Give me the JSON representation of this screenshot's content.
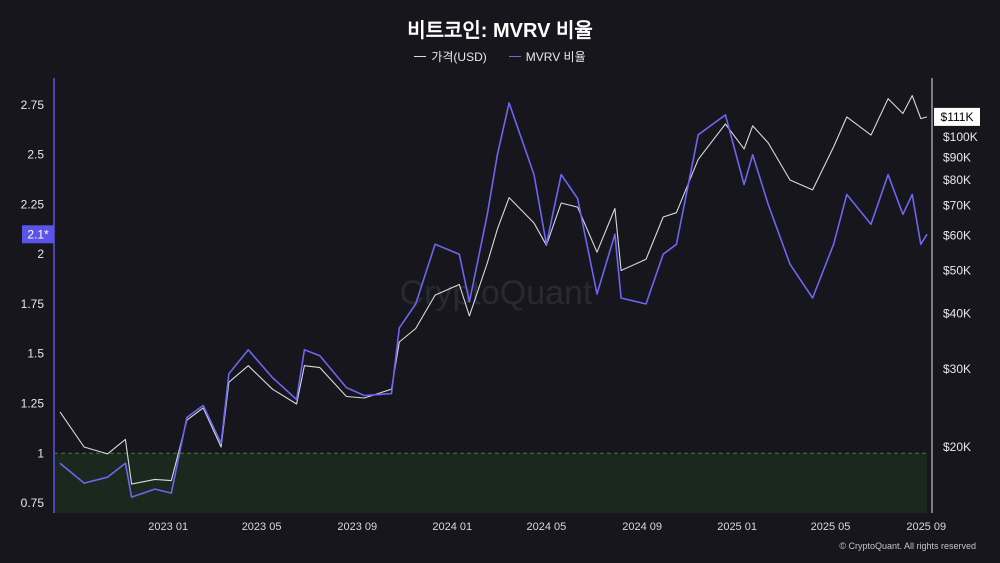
{
  "chart_data": {
    "type": "line",
    "title": "비트코인: MVRV 비율",
    "watermark": "CryptoQuant",
    "copyright": "© CryptoQuant. All rights reserved",
    "x_ticks": [
      "2023 01",
      "2023 05",
      "2023 09",
      "2024 01",
      "2024 05",
      "2024 09",
      "2025 01",
      "2025 05",
      "2025 09"
    ],
    "left_axis": {
      "ticks": [
        "0.75",
        "1",
        "1.25",
        "1.5",
        "1.75",
        "2",
        "2.25",
        "2.5",
        "2.75"
      ],
      "current_value_label": "2.1*",
      "ylim": [
        0.7,
        2.85
      ]
    },
    "right_axis": {
      "scale": "log",
      "ticks": [
        "$20K",
        "$30K",
        "$40K",
        "$50K",
        "$60K",
        "$70K",
        "$80K",
        "$90K",
        "$100K"
      ],
      "current_value_label": "$111K"
    },
    "reference_line": {
      "value": 1,
      "style": "dashed",
      "color": "#3f7a3f"
    },
    "series": [
      {
        "name": "가격(USD)",
        "axis": "right",
        "color": "#d9d9df",
        "points": [
          [
            "2022-08-15",
            24000
          ],
          [
            "2022-09-15",
            20000
          ],
          [
            "2022-10-15",
            19300
          ],
          [
            "2022-11-07",
            20800
          ],
          [
            "2022-11-15",
            16500
          ],
          [
            "2022-12-15",
            16900
          ],
          [
            "2023-01-05",
            16800
          ],
          [
            "2023-01-25",
            23000
          ],
          [
            "2023-02-15",
            24500
          ],
          [
            "2023-03-10",
            20000
          ],
          [
            "2023-03-20",
            28000
          ],
          [
            "2023-04-14",
            30500
          ],
          [
            "2023-05-15",
            27000
          ],
          [
            "2023-06-15",
            25000
          ],
          [
            "2023-06-25",
            30500
          ],
          [
            "2023-07-15",
            30200
          ],
          [
            "2023-08-18",
            26000
          ],
          [
            "2023-09-10",
            25800
          ],
          [
            "2023-10-15",
            27000
          ],
          [
            "2023-10-25",
            34500
          ],
          [
            "2023-11-15",
            37000
          ],
          [
            "2023-12-10",
            44000
          ],
          [
            "2024-01-10",
            46500
          ],
          [
            "2024-01-23",
            39500
          ],
          [
            "2024-02-15",
            52000
          ],
          [
            "2024-02-28",
            62000
          ],
          [
            "2024-03-14",
            73000
          ],
          [
            "2024-04-15",
            64000
          ],
          [
            "2024-05-01",
            57000
          ],
          [
            "2024-05-20",
            71000
          ],
          [
            "2024-06-10",
            69500
          ],
          [
            "2024-07-05",
            55000
          ],
          [
            "2024-07-28",
            69000
          ],
          [
            "2024-08-05",
            50000
          ],
          [
            "2024-09-06",
            53000
          ],
          [
            "2024-09-28",
            66000
          ],
          [
            "2024-10-15",
            67500
          ],
          [
            "2024-11-12",
            89000
          ],
          [
            "2024-12-17",
            107000
          ],
          [
            "2025-01-10",
            94000
          ],
          [
            "2025-01-21",
            106000
          ],
          [
            "2025-02-10",
            97000
          ],
          [
            "2025-03-10",
            80000
          ],
          [
            "2025-04-08",
            76000
          ],
          [
            "2025-05-05",
            95000
          ],
          [
            "2025-05-22",
            111000
          ],
          [
            "2025-06-22",
            101000
          ],
          [
            "2025-07-14",
            122000
          ],
          [
            "2025-08-02",
            113000
          ],
          [
            "2025-08-14",
            124000
          ],
          [
            "2025-08-25",
            110000
          ],
          [
            "2025-09-02",
            111000
          ]
        ]
      },
      {
        "name": "MVRV 비율",
        "axis": "left",
        "color": "#6c66f0",
        "points": [
          [
            "2022-08-15",
            0.95
          ],
          [
            "2022-09-15",
            0.85
          ],
          [
            "2022-10-15",
            0.88
          ],
          [
            "2022-11-07",
            0.95
          ],
          [
            "2022-11-15",
            0.78
          ],
          [
            "2022-12-15",
            0.82
          ],
          [
            "2023-01-05",
            0.8
          ],
          [
            "2023-01-25",
            1.18
          ],
          [
            "2023-02-15",
            1.24
          ],
          [
            "2023-03-10",
            1.05
          ],
          [
            "2023-03-20",
            1.4
          ],
          [
            "2023-04-14",
            1.52
          ],
          [
            "2023-05-15",
            1.38
          ],
          [
            "2023-06-15",
            1.27
          ],
          [
            "2023-06-25",
            1.52
          ],
          [
            "2023-07-15",
            1.49
          ],
          [
            "2023-08-18",
            1.33
          ],
          [
            "2023-09-10",
            1.29
          ],
          [
            "2023-10-15",
            1.3
          ],
          [
            "2023-10-25",
            1.63
          ],
          [
            "2023-11-15",
            1.75
          ],
          [
            "2023-12-10",
            2.05
          ],
          [
            "2024-01-10",
            2.0
          ],
          [
            "2024-01-23",
            1.76
          ],
          [
            "2024-02-15",
            2.2
          ],
          [
            "2024-02-28",
            2.5
          ],
          [
            "2024-03-14",
            2.76
          ],
          [
            "2024-04-15",
            2.4
          ],
          [
            "2024-05-01",
            2.05
          ],
          [
            "2024-05-20",
            2.4
          ],
          [
            "2024-06-10",
            2.28
          ],
          [
            "2024-07-05",
            1.8
          ],
          [
            "2024-07-28",
            2.1
          ],
          [
            "2024-08-05",
            1.78
          ],
          [
            "2024-09-06",
            1.75
          ],
          [
            "2024-09-28",
            2.0
          ],
          [
            "2024-10-15",
            2.05
          ],
          [
            "2024-11-12",
            2.6
          ],
          [
            "2024-12-17",
            2.7
          ],
          [
            "2025-01-10",
            2.35
          ],
          [
            "2025-01-21",
            2.5
          ],
          [
            "2025-02-10",
            2.25
          ],
          [
            "2025-03-10",
            1.95
          ],
          [
            "2025-04-08",
            1.78
          ],
          [
            "2025-05-05",
            2.05
          ],
          [
            "2025-05-22",
            2.3
          ],
          [
            "2025-06-22",
            2.15
          ],
          [
            "2025-07-14",
            2.4
          ],
          [
            "2025-08-02",
            2.2
          ],
          [
            "2025-08-14",
            2.3
          ],
          [
            "2025-08-25",
            2.05
          ],
          [
            "2025-09-02",
            2.1
          ]
        ]
      }
    ]
  }
}
